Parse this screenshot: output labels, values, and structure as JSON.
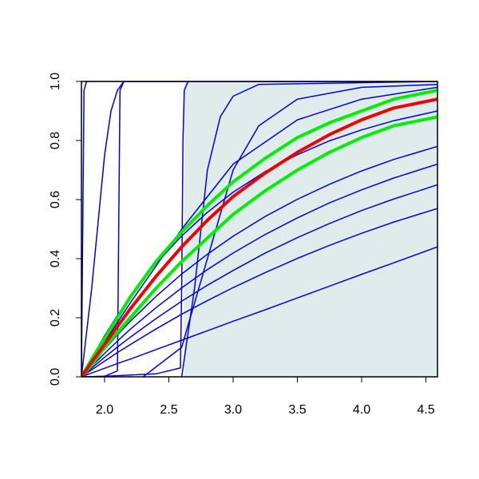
{
  "chart_data": {
    "type": "line",
    "xlim": [
      1.82,
      4.59
    ],
    "ylim": [
      0,
      1
    ],
    "xticks": [
      {
        "value": 2,
        "label": "2.0"
      },
      2.5,
      {
        "value": 3,
        "label": "3.0"
      },
      3.5,
      {
        "value": 4,
        "label": "4.0"
      },
      4.5
    ],
    "yticks": [
      {
        "value": 0,
        "label": "0.0"
      },
      0.2,
      0.4,
      0.6,
      0.8,
      {
        "value": 1,
        "label": "1.0"
      }
    ],
    "shaded_region": {
      "color": "#e0ebeb",
      "x": [
        2.62,
        4.59
      ]
    },
    "series": [
      {
        "color": "#0000dd",
        "width": 1.5,
        "x": [
          1.82,
          1.9,
          2.0,
          2.1,
          2.2,
          2.4,
          2.6,
          2.8,
          3.0,
          3.25,
          3.5,
          3.75,
          4.0,
          4.25,
          4.59
        ],
        "values": [
          0,
          0.064,
          0.139,
          0.208,
          0.271,
          0.383,
          0.477,
          0.557,
          0.625,
          0.695,
          0.752,
          0.799,
          0.836,
          0.867,
          0.9
        ]
      },
      {
        "color": "#0000dd",
        "width": 1.5,
        "x": [
          1.82,
          1.9,
          2.0,
          2.1,
          2.2,
          2.4,
          2.6,
          2.8,
          3.0,
          3.25,
          3.5,
          3.75,
          4.0,
          4.25,
          4.59
        ],
        "values": [
          0,
          0.043,
          0.094,
          0.142,
          0.188,
          0.272,
          0.348,
          0.415,
          0.476,
          0.543,
          0.601,
          0.652,
          0.697,
          0.736,
          0.78
        ]
      },
      {
        "color": "#0000dd",
        "width": 1.5,
        "x": [
          1.82,
          1.9,
          2.0,
          2.1,
          2.2,
          2.4,
          2.6,
          2.8,
          3.0,
          3.25,
          3.5,
          3.75,
          4.0,
          4.25,
          4.59
        ],
        "values": [
          0,
          0.036,
          0.079,
          0.121,
          0.161,
          0.234,
          0.301,
          0.363,
          0.419,
          0.482,
          0.538,
          0.589,
          0.633,
          0.673,
          0.72
        ]
      },
      {
        "color": "#0000dd",
        "width": 1.5,
        "x": [
          1.82,
          1.9,
          2.0,
          2.1,
          2.2,
          2.4,
          2.6,
          2.8,
          3.0,
          3.25,
          3.5,
          3.75,
          4.0,
          4.25,
          4.59
        ],
        "values": [
          0,
          0.03,
          0.066,
          0.101,
          0.134,
          0.197,
          0.256,
          0.31,
          0.36,
          0.419,
          0.471,
          0.519,
          0.563,
          0.602,
          0.65
        ]
      },
      {
        "color": "#0000dd",
        "width": 1.5,
        "x": [
          1.82,
          1.9,
          2.0,
          2.1,
          2.2,
          2.4,
          2.6,
          2.8,
          3.0,
          3.25,
          3.5,
          3.75,
          4.0,
          4.25,
          4.59
        ],
        "values": [
          0,
          0.024,
          0.053,
          0.082,
          0.109,
          0.162,
          0.212,
          0.258,
          0.302,
          0.353,
          0.401,
          0.445,
          0.486,
          0.524,
          0.57
        ]
      },
      {
        "color": "#0000dd",
        "width": 1.5,
        "x": [
          1.82,
          1.9,
          2.0,
          2.1,
          2.2,
          2.4,
          2.6,
          2.8,
          3.0,
          3.25,
          3.5,
          3.75,
          4.0,
          4.25,
          4.59
        ],
        "values": [
          0,
          0.013,
          0.029,
          0.045,
          0.06,
          0.092,
          0.124,
          0.156,
          0.188,
          0.227,
          0.267,
          0.307,
          0.347,
          0.386,
          0.44
        ]
      },
      {
        "color": "#0000dd",
        "width": 1.5,
        "x": [
          1.82,
          1.83,
          1.84,
          1.86,
          4.59
        ],
        "values": [
          0,
          0.5,
          0.97,
          1,
          1
        ]
      },
      {
        "color": "#0000dd",
        "width": 1.5,
        "x": [
          1.82,
          1.9,
          2.0,
          2.05,
          2.1,
          2.15,
          4.59
        ],
        "values": [
          0,
          0.3,
          0.75,
          0.9,
          0.97,
          1,
          1
        ]
      },
      {
        "color": "#0000dd",
        "width": 1.5,
        "x": [
          1.82,
          2.0,
          2.1,
          2.11,
          2.12,
          2.15,
          4.59
        ],
        "values": [
          0,
          0.002,
          0.02,
          0.5,
          0.97,
          1,
          1
        ]
      },
      {
        "color": "#0000dd",
        "width": 1.5,
        "x": [
          1.9,
          2.4,
          2.59,
          2.6,
          2.61,
          2.62,
          2.65,
          4.59
        ],
        "values": [
          0,
          0.01,
          0.03,
          0.3,
          0.8,
          0.97,
          1,
          1
        ]
      },
      {
        "color": "#0000dd",
        "width": 1.5,
        "x": [
          2.6,
          2.7,
          2.8,
          2.9,
          3.0,
          3.2,
          4.59
        ],
        "values": [
          0,
          0.3,
          0.7,
          0.88,
          0.95,
          0.99,
          1
        ]
      },
      {
        "color": "#0000dd",
        "width": 1.5,
        "x": [
          2.3,
          2.6,
          2.8,
          3.0,
          3.2,
          3.5,
          4.0,
          4.59
        ],
        "values": [
          0,
          0.1,
          0.4,
          0.7,
          0.85,
          0.94,
          0.98,
          0.99
        ]
      },
      {
        "color": "#0000dd",
        "width": 1.5,
        "x": [
          1.82,
          2.2,
          2.6,
          3.0,
          3.5,
          4.0,
          4.59
        ],
        "values": [
          0,
          0.25,
          0.5,
          0.72,
          0.87,
          0.94,
          0.98
        ]
      },
      {
        "color": "#00ee00",
        "width": 4,
        "x": [
          1.82,
          1.9,
          2.0,
          2.1,
          2.2,
          2.4,
          2.6,
          2.8,
          3.0,
          3.25,
          3.5,
          3.75,
          4.0,
          4.25,
          4.59
        ],
        "values": [
          0,
          0.06,
          0.13,
          0.2,
          0.27,
          0.39,
          0.49,
          0.58,
          0.66,
          0.74,
          0.81,
          0.86,
          0.9,
          0.94,
          0.97
        ]
      },
      {
        "color": "#00ee00",
        "width": 4,
        "x": [
          1.82,
          1.9,
          2.0,
          2.1,
          2.2,
          2.4,
          2.6,
          2.8,
          3.0,
          3.25,
          3.5,
          3.75,
          4.0,
          4.25,
          4.59
        ],
        "values": [
          0,
          0.04,
          0.1,
          0.15,
          0.2,
          0.3,
          0.39,
          0.47,
          0.55,
          0.63,
          0.7,
          0.76,
          0.81,
          0.85,
          0.88
        ]
      },
      {
        "color": "#ee0000",
        "width": 4,
        "x": [
          1.82,
          1.9,
          2.0,
          2.1,
          2.2,
          2.4,
          2.6,
          2.8,
          3.0,
          3.25,
          3.5,
          3.75,
          4.0,
          4.25,
          4.59
        ],
        "values": [
          0,
          0.05,
          0.11,
          0.17,
          0.23,
          0.34,
          0.44,
          0.53,
          0.61,
          0.69,
          0.76,
          0.82,
          0.87,
          0.91,
          0.94
        ]
      }
    ]
  }
}
